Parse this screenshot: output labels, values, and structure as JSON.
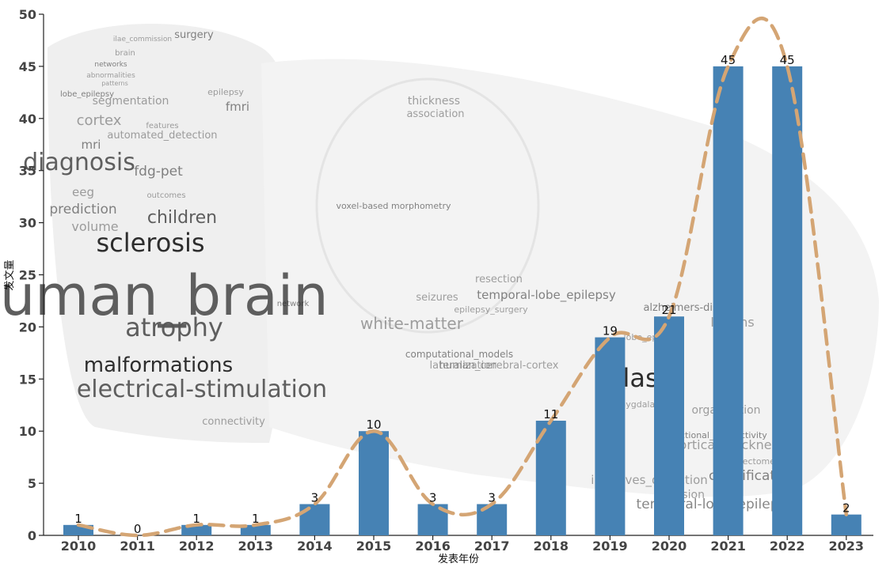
{
  "chart_data": {
    "type": "bar",
    "title": "",
    "xlabel": "发表年份",
    "ylabel": "发文量",
    "categories": [
      "2010",
      "2011",
      "2012",
      "2013",
      "2014",
      "2015",
      "2016",
      "2017",
      "2018",
      "2019",
      "2020",
      "2021",
      "2022",
      "2023"
    ],
    "values": [
      1,
      0,
      1,
      1,
      3,
      10,
      3,
      3,
      11,
      19,
      21,
      45,
      45,
      2
    ],
    "ylim": [
      0,
      50
    ],
    "yticks": [
      0,
      5,
      10,
      15,
      20,
      25,
      30,
      35,
      40,
      45,
      50
    ],
    "bar_color": "#4682b4",
    "line_color": "#d4a574",
    "line_style": "dashed",
    "grid": false,
    "background_word_cloud": [
      "surgery",
      "ilae_commission",
      "brain",
      "networks",
      "abnormalities",
      "patterns",
      "lobe_epilepsy",
      "epilepsy",
      "segmentation",
      "fmri",
      "cortex",
      "features",
      "mri",
      "automated_detection",
      "diagnosis",
      "fdg-pet",
      "eeg",
      "outcomes",
      "prediction",
      "children",
      "volume",
      "sclerosis",
      "human_brain",
      "atrophy",
      "malformations",
      "electrical-stimulation",
      "connectivity",
      "network",
      "thickness",
      "association",
      "voxel-based morphometry",
      "resection",
      "seizures",
      "temporal-lobe_epilepsy",
      "white-matter",
      "epilepsy_surgery",
      "computational_models",
      "lateralization",
      "human_cerebral-cortex",
      "atlas",
      "amygdala",
      "lobe_epilepsy",
      "alzheimers-disease",
      "lesions",
      "organization",
      "functional_connectivity",
      "cortical_thickness",
      "connectome",
      "classification",
      "improves_detection",
      "diffusion",
      "temporal-lobe_epilepsy"
    ]
  }
}
